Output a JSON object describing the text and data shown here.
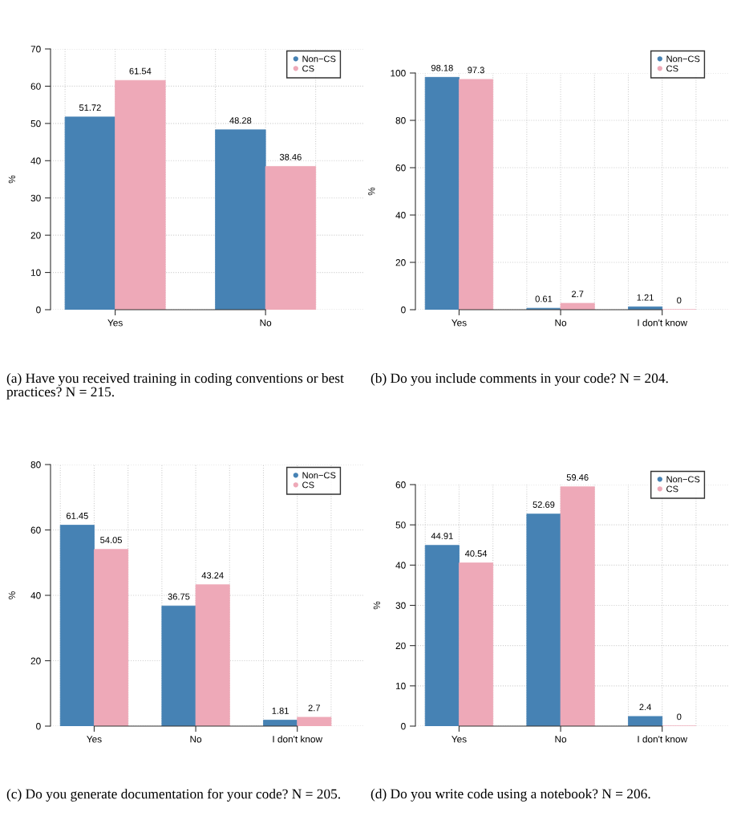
{
  "chart_data": [
    {
      "type": "bar",
      "categories": [
        "Yes",
        "No"
      ],
      "ylabel": "%",
      "ylim": [
        0,
        70
      ],
      "yticks": [
        0,
        10,
        20,
        30,
        40,
        50,
        60,
        70
      ],
      "grid": true,
      "legend": "top right",
      "data_labels": true,
      "series": [
        {
          "name": "Non−CS",
          "color": "#4682b4",
          "values": [
            51.72,
            48.28
          ]
        },
        {
          "name": "CS",
          "color": "#eea9b8",
          "values": [
            61.54,
            38.46
          ]
        }
      ],
      "annotations": [
        "(a) Have you received training in coding conventions or best practices? N = 215."
      ]
    },
    {
      "type": "bar",
      "categories": [
        "Yes",
        "No",
        "I don't know"
      ],
      "ylabel": "%",
      "ylim": [
        0,
        100
      ],
      "yticks": [
        0,
        20,
        40,
        60,
        80,
        100
      ],
      "grid": true,
      "legend": "top right",
      "data_labels": true,
      "series": [
        {
          "name": "Non−CS",
          "color": "#4682b4",
          "values": [
            98.18,
            0.61,
            1.21
          ]
        },
        {
          "name": "CS",
          "color": "#eea9b8",
          "values": [
            97.3,
            2.7,
            0
          ]
        }
      ],
      "annotations": [
        "(b) Do you include comments in your code? N = 204."
      ]
    },
    {
      "type": "bar",
      "categories": [
        "Yes",
        "No",
        "I don't know"
      ],
      "ylabel": "%",
      "ylim": [
        0,
        80
      ],
      "yticks": [
        0,
        20,
        40,
        60,
        80
      ],
      "grid": true,
      "legend": "top right",
      "data_labels": true,
      "series": [
        {
          "name": "Non−CS",
          "color": "#4682b4",
          "values": [
            61.45,
            36.75,
            1.81
          ]
        },
        {
          "name": "CS",
          "color": "#eea9b8",
          "values": [
            54.05,
            43.24,
            2.7
          ]
        }
      ],
      "annotations": [
        "(c) Do you generate documentation for your code? N = 205."
      ]
    },
    {
      "type": "bar",
      "categories": [
        "Yes",
        "No",
        "I don't know"
      ],
      "ylabel": "%",
      "ylim": [
        0,
        60
      ],
      "yticks": [
        0,
        10,
        20,
        30,
        40,
        50,
        60
      ],
      "grid": true,
      "legend": "top right",
      "data_labels": true,
      "series": [
        {
          "name": "Non−CS",
          "color": "#4682b4",
          "values": [
            44.91,
            52.69,
            2.4
          ]
        },
        {
          "name": "CS",
          "color": "#eea9b8",
          "values": [
            40.54,
            59.46,
            0
          ]
        }
      ],
      "annotations": [
        "(d) Do you write code using a notebook? N = 206."
      ]
    }
  ]
}
